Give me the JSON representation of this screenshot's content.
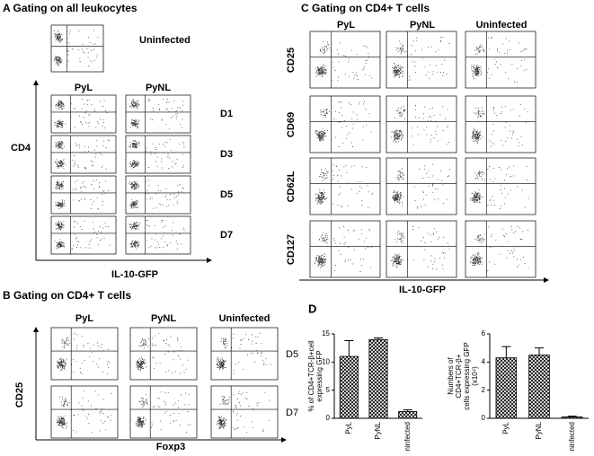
{
  "panels": {
    "A": {
      "title": "A  Gating on all leukocytes",
      "uninfected": "Uninfected",
      "columns": [
        "PyL",
        "PyNL"
      ],
      "rows": [
        "D1",
        "D3",
        "D5",
        "D7"
      ],
      "y_label": "CD4",
      "x_label": "IL-10-GFP"
    },
    "B": {
      "title": "B  Gating on CD4+ T cells",
      "columns": [
        "PyL",
        "PyNL",
        "Uninfected"
      ],
      "rows": [
        "D5",
        "D7"
      ],
      "y_label": "CD25",
      "x_label": "Foxp3"
    },
    "C": {
      "title": "C  Gating on CD4+ T cells",
      "columns": [
        "PyL",
        "PyNL",
        "Uninfected"
      ],
      "rows": [
        "CD25",
        "CD69",
        "CD62L",
        "CD127"
      ],
      "x_label": "IL-10-GFP"
    },
    "D": {
      "title": "D"
    }
  },
  "chart_data": [
    {
      "type": "bar",
      "y_label": [
        "% of CD4+TCR-β+cell",
        "expressing GFP"
      ],
      "categories": [
        "PyL",
        "PyNL",
        "Uninfected"
      ],
      "values": [
        11,
        14,
        1.2
      ],
      "errors": [
        2.8,
        0.3,
        0.3
      ],
      "ylim": [
        0,
        15
      ],
      "yticks": [
        0,
        5,
        10,
        15
      ]
    },
    {
      "type": "bar",
      "y_label": [
        "Numbers of",
        "CD4+TCR-β+",
        "cells expressing GFP",
        "(x10⁴)"
      ],
      "categories": [
        "PyL",
        "PyNL",
        "Uninfected"
      ],
      "values": [
        4.3,
        4.5,
        0.1
      ],
      "errors": [
        0.8,
        0.5,
        0.05
      ],
      "ylim": [
        0,
        6
      ],
      "yticks": [
        0,
        2,
        4,
        6
      ]
    }
  ]
}
